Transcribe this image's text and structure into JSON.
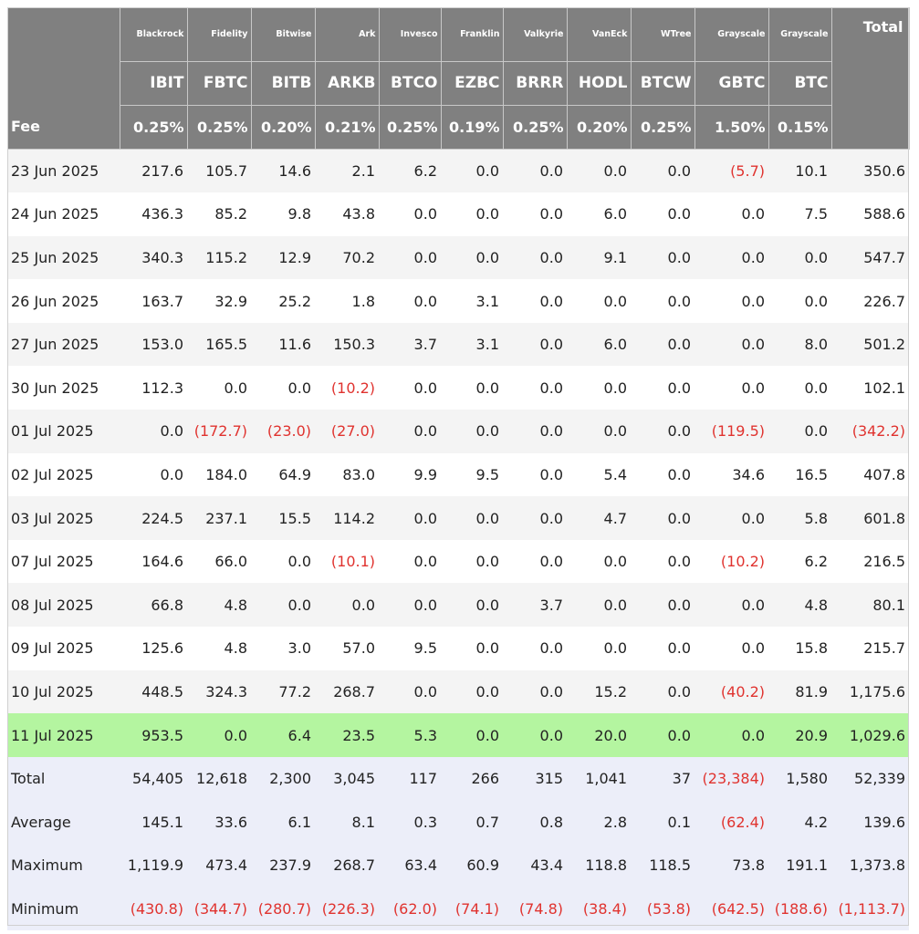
{
  "header": {
    "issuers": [
      "Blackrock",
      "Fidelity",
      "Bitwise",
      "Ark",
      "Invesco",
      "Franklin",
      "Valkyrie",
      "VanEck",
      "WTree",
      "Grayscale",
      "Grayscale"
    ],
    "total_label": "Total",
    "tickers": [
      "IBIT",
      "FBTC",
      "BITB",
      "ARKB",
      "BTCO",
      "EZBC",
      "BRRR",
      "HODL",
      "BTCW",
      "GBTC",
      "BTC"
    ],
    "fee_label": "Fee",
    "fees": [
      "0.25%",
      "0.25%",
      "0.20%",
      "0.21%",
      "0.25%",
      "0.19%",
      "0.25%",
      "0.20%",
      "0.25%",
      "1.50%",
      "0.15%"
    ]
  },
  "rows": [
    {
      "date": "23 Jun 2025",
      "values": [
        "217.6",
        "105.7",
        "14.6",
        "2.1",
        "6.2",
        "0.0",
        "0.0",
        "0.0",
        "0.0",
        "(5.7)",
        "10.1"
      ],
      "total": "350.6"
    },
    {
      "date": "24 Jun 2025",
      "values": [
        "436.3",
        "85.2",
        "9.8",
        "43.8",
        "0.0",
        "0.0",
        "0.0",
        "6.0",
        "0.0",
        "0.0",
        "7.5"
      ],
      "total": "588.6"
    },
    {
      "date": "25 Jun 2025",
      "values": [
        "340.3",
        "115.2",
        "12.9",
        "70.2",
        "0.0",
        "0.0",
        "0.0",
        "9.1",
        "0.0",
        "0.0",
        "0.0"
      ],
      "total": "547.7"
    },
    {
      "date": "26 Jun 2025",
      "values": [
        "163.7",
        "32.9",
        "25.2",
        "1.8",
        "0.0",
        "3.1",
        "0.0",
        "0.0",
        "0.0",
        "0.0",
        "0.0"
      ],
      "total": "226.7"
    },
    {
      "date": "27 Jun 2025",
      "values": [
        "153.0",
        "165.5",
        "11.6",
        "150.3",
        "3.7",
        "3.1",
        "0.0",
        "6.0",
        "0.0",
        "0.0",
        "8.0"
      ],
      "total": "501.2"
    },
    {
      "date": "30 Jun 2025",
      "values": [
        "112.3",
        "0.0",
        "0.0",
        "(10.2)",
        "0.0",
        "0.0",
        "0.0",
        "0.0",
        "0.0",
        "0.0",
        "0.0"
      ],
      "total": "102.1"
    },
    {
      "date": "01 Jul 2025",
      "values": [
        "0.0",
        "(172.7)",
        "(23.0)",
        "(27.0)",
        "0.0",
        "0.0",
        "0.0",
        "0.0",
        "0.0",
        "(119.5)",
        "0.0"
      ],
      "total": "(342.2)"
    },
    {
      "date": "02 Jul 2025",
      "values": [
        "0.0",
        "184.0",
        "64.9",
        "83.0",
        "9.9",
        "9.5",
        "0.0",
        "5.4",
        "0.0",
        "34.6",
        "16.5"
      ],
      "total": "407.8"
    },
    {
      "date": "03 Jul 2025",
      "values": [
        "224.5",
        "237.1",
        "15.5",
        "114.2",
        "0.0",
        "0.0",
        "0.0",
        "4.7",
        "0.0",
        "0.0",
        "5.8"
      ],
      "total": "601.8"
    },
    {
      "date": "07 Jul 2025",
      "values": [
        "164.6",
        "66.0",
        "0.0",
        "(10.1)",
        "0.0",
        "0.0",
        "0.0",
        "0.0",
        "0.0",
        "(10.2)",
        "6.2"
      ],
      "total": "216.5"
    },
    {
      "date": "08 Jul 2025",
      "values": [
        "66.8",
        "4.8",
        "0.0",
        "0.0",
        "0.0",
        "0.0",
        "3.7",
        "0.0",
        "0.0",
        "0.0",
        "4.8"
      ],
      "total": "80.1"
    },
    {
      "date": "09 Jul 2025",
      "values": [
        "125.6",
        "4.8",
        "3.0",
        "57.0",
        "9.5",
        "0.0",
        "0.0",
        "0.0",
        "0.0",
        "0.0",
        "15.8"
      ],
      "total": "215.7"
    },
    {
      "date": "10 Jul 2025",
      "values": [
        "448.5",
        "324.3",
        "77.2",
        "268.7",
        "0.0",
        "0.0",
        "0.0",
        "15.2",
        "0.0",
        "(40.2)",
        "81.9"
      ],
      "total": "1,175.6"
    },
    {
      "date": "11 Jul 2025",
      "values": [
        "953.5",
        "0.0",
        "6.4",
        "23.5",
        "5.3",
        "0.0",
        "0.0",
        "20.0",
        "0.0",
        "0.0",
        "20.9"
      ],
      "total": "1,029.6",
      "highlight": true
    }
  ],
  "summary": [
    {
      "label": "Total",
      "values": [
        "54,405",
        "12,618",
        "2,300",
        "3,045",
        "117",
        "266",
        "315",
        "1,041",
        "37",
        "(23,384)",
        "1,580"
      ],
      "total": "52,339"
    },
    {
      "label": "Average",
      "values": [
        "145.1",
        "33.6",
        "6.1",
        "8.1",
        "0.3",
        "0.7",
        "0.8",
        "2.8",
        "0.1",
        "(62.4)",
        "4.2"
      ],
      "total": "139.6"
    },
    {
      "label": "Maximum",
      "values": [
        "1,119.9",
        "473.4",
        "237.9",
        "268.7",
        "63.4",
        "60.9",
        "43.4",
        "118.8",
        "118.5",
        "73.8",
        "191.1"
      ],
      "total": "1,373.8"
    },
    {
      "label": "Minimum",
      "values": [
        "(430.8)",
        "(344.7)",
        "(280.7)",
        "(226.3)",
        "(62.0)",
        "(74.1)",
        "(74.8)",
        "(38.4)",
        "(53.8)",
        "(642.5)",
        "(188.6)"
      ],
      "total": "(1,113.7)"
    }
  ],
  "colors": {
    "header_bg": "#808080",
    "negative": "#e0332f",
    "highlight_row": "#b4f5a0",
    "summary_bg": "#eceef9"
  }
}
